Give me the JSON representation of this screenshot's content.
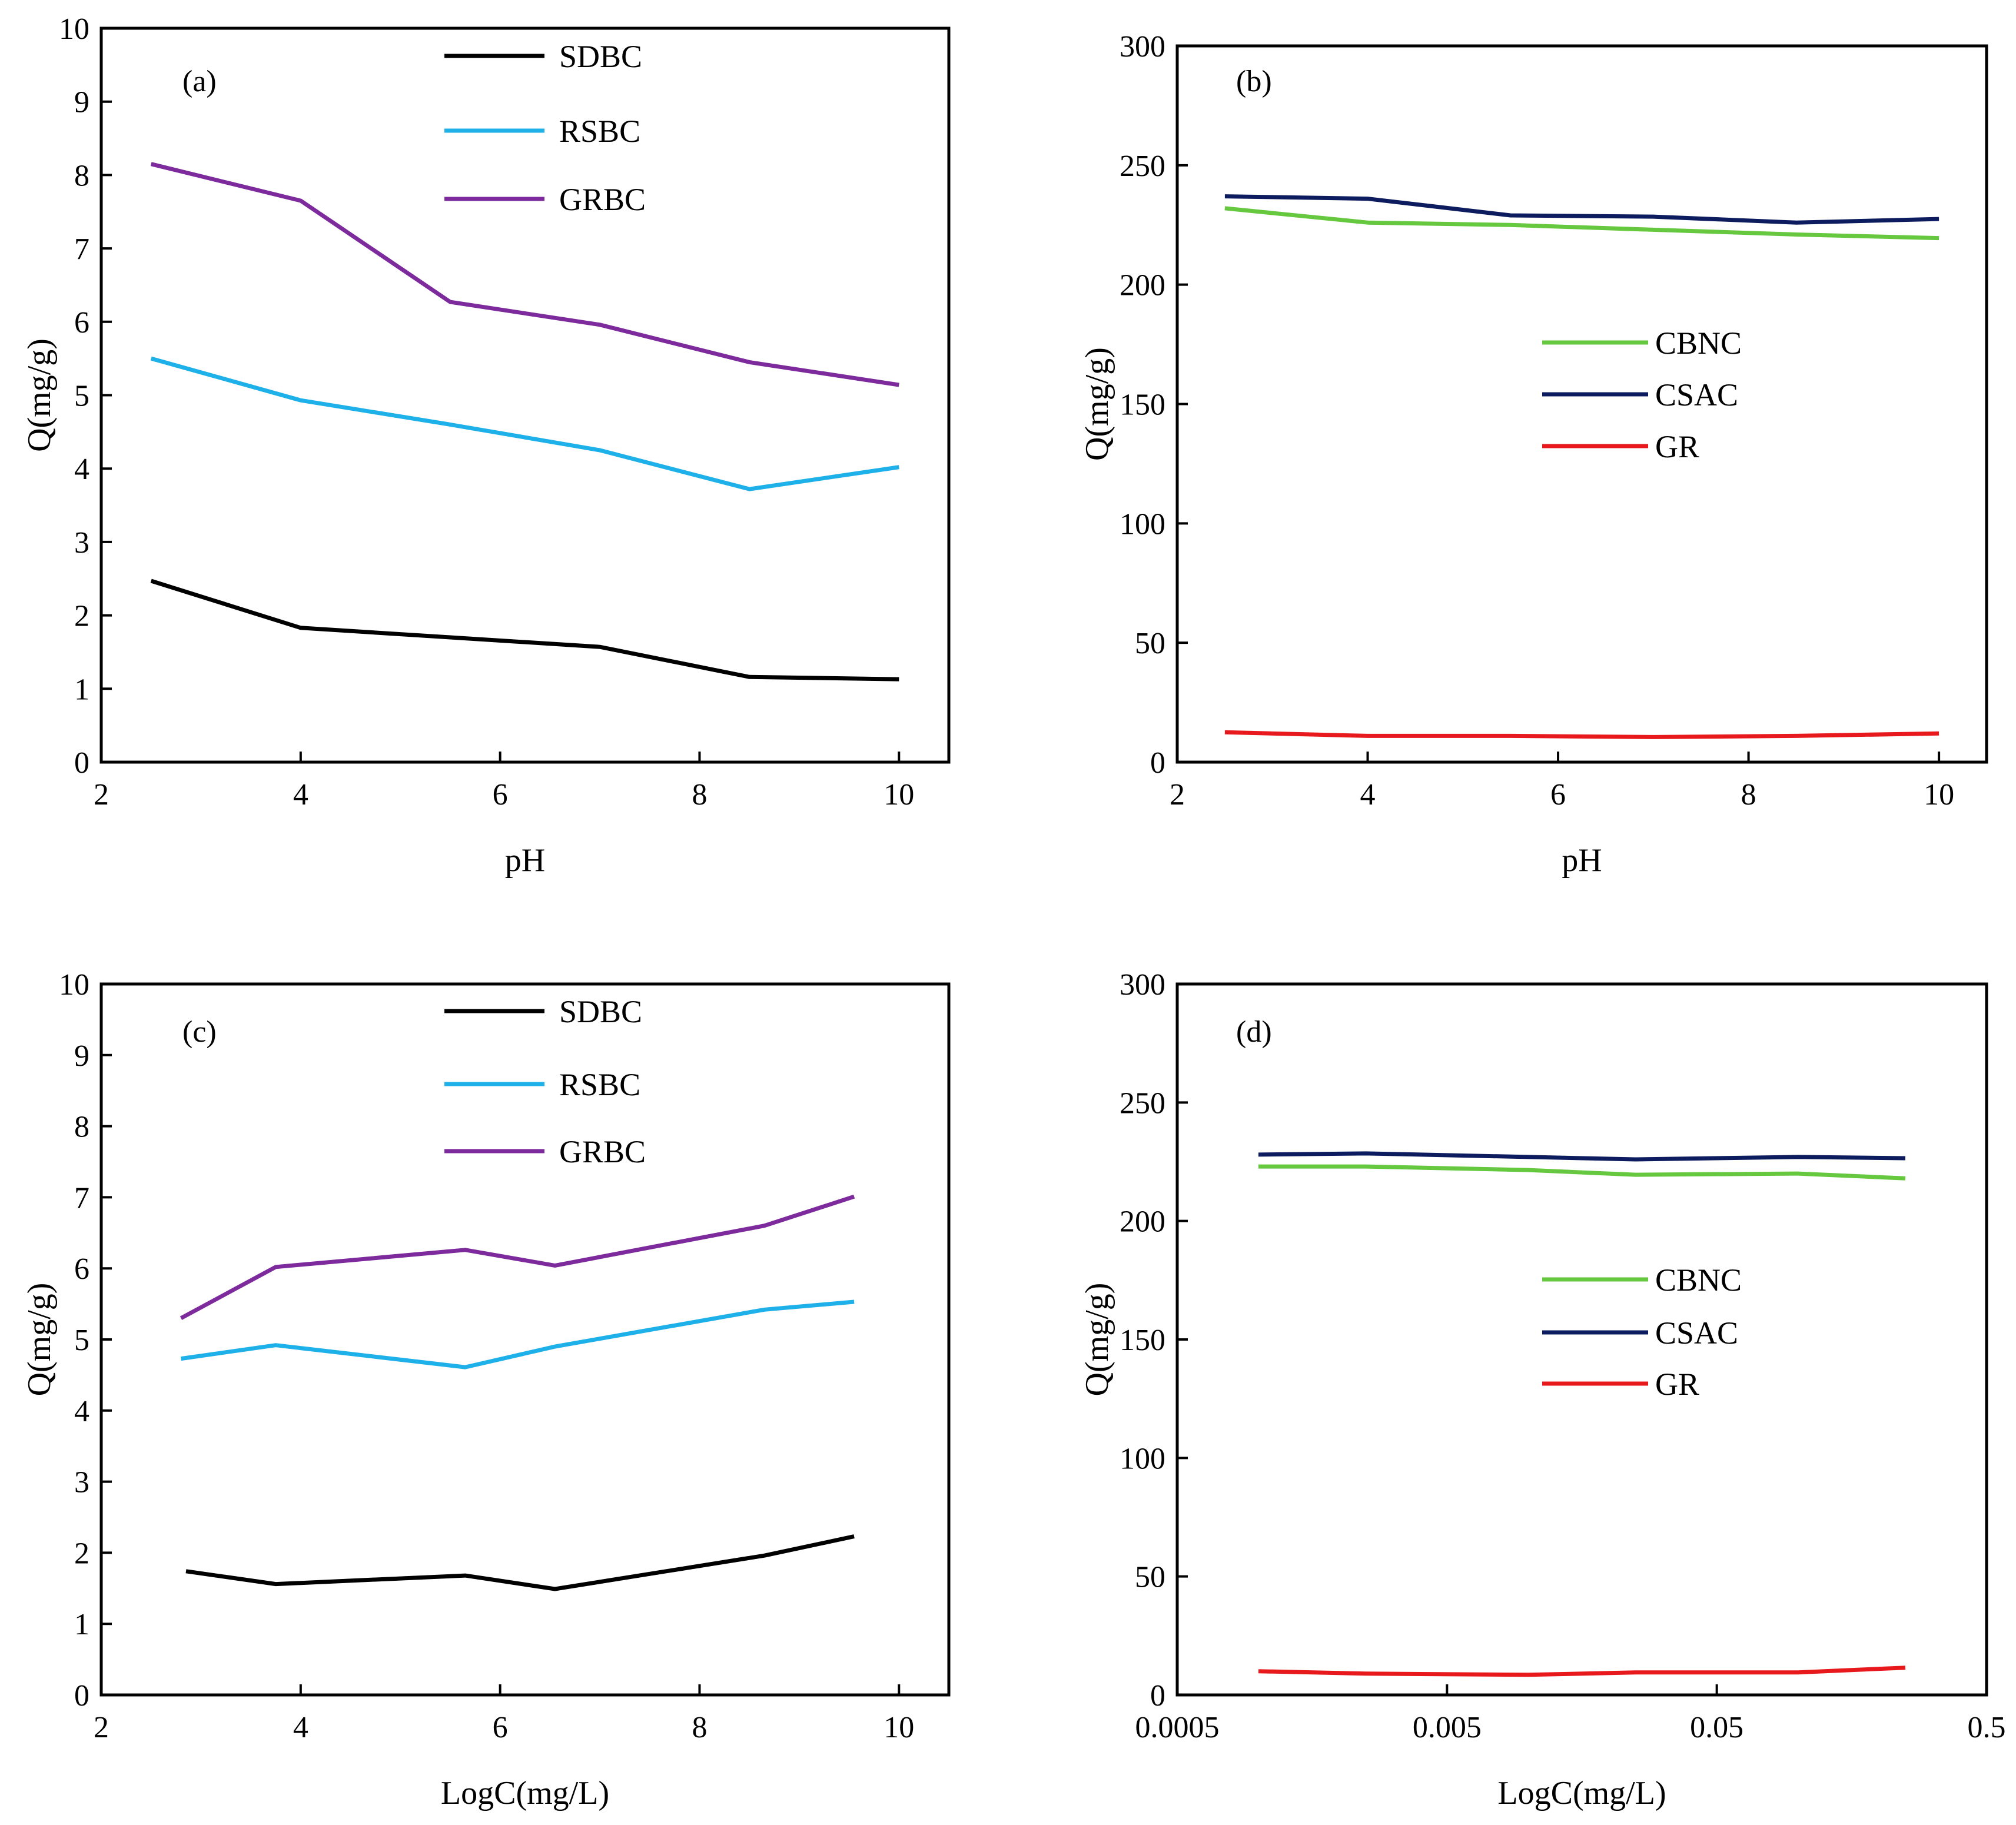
{
  "chart_data": [
    {
      "id": "a",
      "type": "line",
      "panel_label": "(a)",
      "xlabel": "pH",
      "ylabel": "Q(mg/g)",
      "xlim": [
        2,
        10.5
      ],
      "ylim": [
        0,
        10
      ],
      "xticks": [
        2,
        4,
        6,
        8,
        10
      ],
      "yticks": [
        0,
        1,
        2,
        3,
        4,
        5,
        6,
        7,
        8,
        9,
        10
      ],
      "legend_position": "top-center",
      "series": [
        {
          "name": "SDBC",
          "color": "#000000",
          "x": [
            2.5,
            4,
            5.5,
            7,
            8.5,
            10
          ],
          "y": [
            2.47,
            1.83,
            1.7,
            1.57,
            1.16,
            1.13
          ]
        },
        {
          "name": "RSBC",
          "color": "#1eb0e8",
          "x": [
            2.5,
            4,
            5.5,
            7,
            8.5,
            10
          ],
          "y": [
            5.5,
            4.93,
            4.6,
            4.25,
            3.72,
            4.02
          ]
        },
        {
          "name": "GRBC",
          "color": "#7d2a9c",
          "x": [
            2.5,
            4,
            5.5,
            7,
            8.5,
            10
          ],
          "y": [
            8.15,
            7.65,
            6.27,
            5.96,
            5.45,
            5.14
          ]
        }
      ]
    },
    {
      "id": "b",
      "type": "line",
      "panel_label": "(b)",
      "xlabel": "pH",
      "ylabel": "Q(mg/g)",
      "xlim": [
        2,
        10.5
      ],
      "ylim": [
        0,
        300
      ],
      "xticks": [
        2,
        4,
        6,
        8,
        10
      ],
      "yticks": [
        0,
        50,
        100,
        150,
        200,
        250,
        300
      ],
      "legend_position": "center",
      "series": [
        {
          "name": "CBNC",
          "color": "#66c83e",
          "x": [
            2.5,
            4,
            5.5,
            7,
            8.5,
            10
          ],
          "y": [
            232,
            226,
            225,
            223,
            221,
            219.5
          ]
        },
        {
          "name": "CSAC",
          "color": "#0d1c5e",
          "x": [
            2.5,
            4,
            5.5,
            7,
            8.5,
            10
          ],
          "y": [
            237,
            236,
            229,
            228.5,
            226,
            227.5
          ]
        },
        {
          "name": "GR",
          "color": "#e8191c",
          "x": [
            2.5,
            4,
            5.5,
            7,
            8.5,
            10
          ],
          "y": [
            12.5,
            11,
            11,
            10.5,
            11,
            12
          ]
        }
      ]
    },
    {
      "id": "c",
      "type": "line",
      "panel_label": "(c)",
      "xlabel": "LogC(mg/L)",
      "ylabel": "Q(mg/g)",
      "xlim": [
        2,
        10.5
      ],
      "ylim": [
        0,
        10
      ],
      "xticks": [
        2,
        4,
        6,
        8,
        10
      ],
      "yticks": [
        0,
        1,
        2,
        3,
        4,
        5,
        6,
        7,
        8,
        9,
        10
      ],
      "legend_position": "top-center",
      "series": [
        {
          "name": "SDBC",
          "color": "#000000",
          "x": [
            2.85,
            3.75,
            5.65,
            6.55,
            8.65,
            9.55
          ],
          "y": [
            1.74,
            1.56,
            1.68,
            1.49,
            1.96,
            2.23
          ]
        },
        {
          "name": "RSBC",
          "color": "#1eb0e8",
          "x": [
            2.8,
            3.75,
            5.65,
            6.55,
            8.65,
            9.55
          ],
          "y": [
            4.73,
            4.92,
            4.61,
            4.9,
            5.42,
            5.53
          ]
        },
        {
          "name": "GRBC",
          "color": "#7d2a9c",
          "x": [
            2.8,
            3.75,
            5.65,
            6.55,
            8.65,
            9.55
          ],
          "y": [
            5.3,
            6.02,
            6.26,
            6.04,
            6.6,
            7.01
          ]
        }
      ]
    },
    {
      "id": "d",
      "type": "line",
      "panel_label": "(d)",
      "xlabel": "LogC(mg/L)",
      "ylabel": "Q(mg/g)",
      "xscale": "log",
      "xlim": [
        0.0005,
        0.5
      ],
      "ylim": [
        0,
        300
      ],
      "xticks": [
        0.0005,
        0.005,
        0.05,
        0.5
      ],
      "xtick_labels": [
        "0.0005",
        "0.005",
        "0.05",
        "0.5"
      ],
      "yticks": [
        0,
        50,
        100,
        150,
        200,
        250,
        300
      ],
      "legend_position": "center",
      "series": [
        {
          "name": "CBNC",
          "color": "#66c83e",
          "x": [
            0.001,
            0.0025,
            0.01,
            0.025,
            0.1,
            0.25
          ],
          "y": [
            223,
            223,
            221.5,
            219.5,
            220,
            218
          ]
        },
        {
          "name": "CSAC",
          "color": "#0d1c5e",
          "x": [
            0.001,
            0.0025,
            0.01,
            0.025,
            0.1,
            0.25
          ],
          "y": [
            228,
            228.5,
            227,
            226,
            227,
            226.5
          ]
        },
        {
          "name": "GR",
          "color": "#e8191c",
          "x": [
            0.001,
            0.0025,
            0.01,
            0.025,
            0.1,
            0.25
          ],
          "y": [
            10,
            9,
            8.5,
            9.5,
            9.5,
            11.5
          ]
        }
      ]
    }
  ]
}
